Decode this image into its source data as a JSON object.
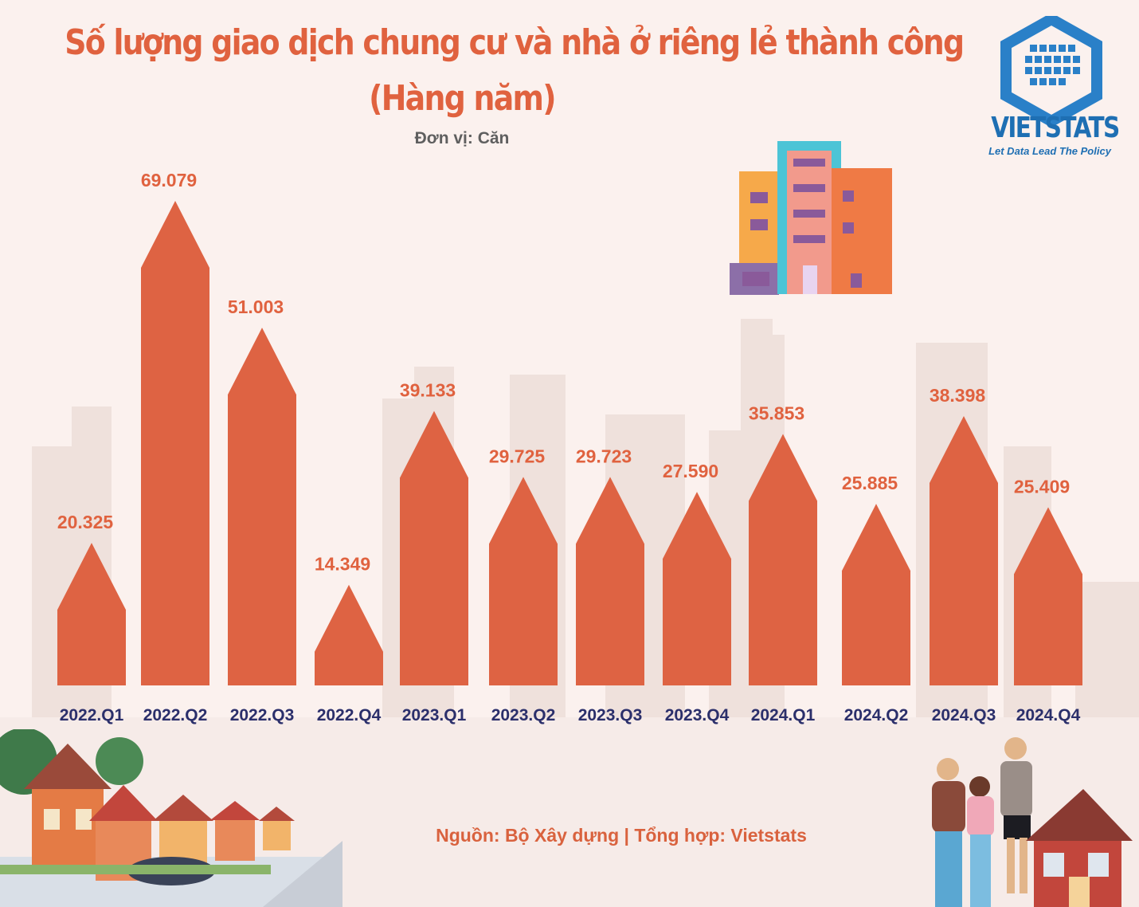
{
  "title": "Số lượng giao dịch chung cư và nhà ở riêng lẻ thành công",
  "subtitle": "(Hàng năm)",
  "unit_label": "Đơn vị: Căn",
  "logo": {
    "name": "VIETSTATS",
    "tagline": "Let Data Lead The Policy"
  },
  "source": "Nguồn: Bộ Xây dựng | Tổng hợp: Vietstats",
  "colors": {
    "bar": "#de6343",
    "category_label": "#2b2f6b",
    "value_label": "#e0623f",
    "title": "#e0623f",
    "logo": "#1e6fb3"
  },
  "chart_data": {
    "type": "bar",
    "categories": [
      "2022.Q1",
      "2022.Q2",
      "2022.Q3",
      "2022.Q4",
      "2023.Q1",
      "2023.Q2",
      "2023.Q3",
      "2023.Q4",
      "2024.Q1",
      "2024.Q2",
      "2024.Q3",
      "2024.Q4"
    ],
    "values": [
      20325,
      69079,
      51003,
      14349,
      39133,
      29725,
      29723,
      27590,
      35853,
      25885,
      38398,
      25409
    ],
    "value_labels": [
      "20.325",
      "69.079",
      "51.003",
      "14.349",
      "39.133",
      "29.725",
      "29.723",
      "27.590",
      "35.853",
      "25.885",
      "38.398",
      "25.409"
    ],
    "title": "Số lượng giao dịch chung cư và nhà ở riêng lẻ thành công",
    "ylabel": "",
    "xlabel": "",
    "grid": false,
    "legend": "none",
    "bar_shape": "house (pointed roof)"
  },
  "icons": [
    "city-skyline-background",
    "apartment-building-icon",
    "suburban-houses-illustration",
    "family-realtor-illustration",
    "vietstats-logo-icon"
  ]
}
